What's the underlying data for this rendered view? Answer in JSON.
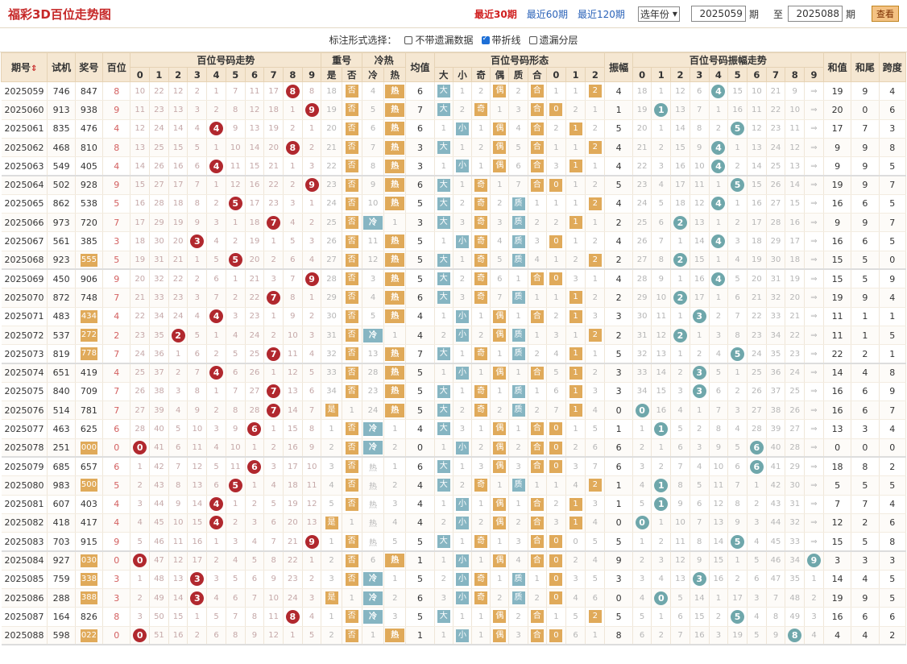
{
  "header": {
    "title": "福彩3D百位走势图",
    "nav": [
      "最近30期",
      "最近60期",
      "最近120期"
    ],
    "year_select": "选年份",
    "from": "2025059",
    "mid": "期",
    "to_label": "至",
    "to": "2025088",
    "end": "期",
    "btn": "查看"
  },
  "options": {
    "label": "标注形式选择：",
    "items": [
      {
        "label": "不带遗漏数据",
        "checked": false
      },
      {
        "label": "带折线",
        "checked": true
      },
      {
        "label": "遗漏分层",
        "checked": false
      }
    ]
  },
  "columns": {
    "qihao": "期号",
    "sort_icon": "⇕",
    "shiji": "试机",
    "jianghao": "奖号",
    "bai": "百位",
    "trend": "百位号码走势",
    "chong": "重号",
    "shi": "是",
    "fou": "否",
    "lengre": "冷热",
    "leng": "冷",
    "re": "热",
    "junzhi": "均值",
    "form": "百位号码形态",
    "da": "大",
    "xiao": "小",
    "ji": "奇",
    "ou": "偶",
    "zhi": "质",
    "he": "合",
    "zf": "振幅",
    "amp": "百位号码振幅走势",
    "hz": "和值",
    "hw": "和尾",
    "kd": "跨度",
    "digits": [
      "0",
      "1",
      "2",
      "3",
      "4",
      "5",
      "6",
      "7",
      "8",
      "9"
    ]
  },
  "rows": [
    [
      "2025059",
      "746",
      "847",
      "8",
      [
        10,
        22,
        12,
        2,
        1,
        7,
        11,
        17,
        "8",
        8
      ],
      "18",
      "否",
      "4",
      "热",
      "6",
      "大",
      "1",
      "2",
      "偶",
      "2",
      "合",
      "1",
      "1",
      "2",
      "4",
      [
        18,
        1,
        12,
        6,
        "4",
        15,
        10,
        21,
        9,
        "⇒"
      ],
      "19",
      "9",
      "4"
    ],
    [
      "2025060",
      "913",
      "938",
      "9",
      [
        11,
        23,
        13,
        3,
        2,
        8,
        12,
        18,
        1,
        "9"
      ],
      "19",
      "否",
      "5",
      "热",
      "7",
      "大",
      "2",
      "奇",
      "1",
      "3",
      "合",
      "0",
      "2",
      "1",
      "1",
      [
        19,
        "1",
        13,
        7,
        1,
        16,
        11,
        22,
        10,
        "⇒"
      ],
      "20",
      "0",
      "6"
    ],
    [
      "2025061",
      "835",
      "476",
      "4",
      [
        12,
        24,
        14,
        4,
        "4",
        9,
        13,
        19,
        2,
        1
      ],
      "20",
      "否",
      "6",
      "热",
      "6",
      "1",
      "小",
      "1",
      "偶",
      "4",
      "合",
      "2",
      "1",
      "2",
      "5",
      [
        20,
        1,
        14,
        8,
        2,
        "5",
        12,
        23,
        11,
        "⇒"
      ],
      "17",
      "7",
      "3"
    ],
    [
      "2025062",
      "468",
      "810",
      "8",
      [
        13,
        25,
        15,
        5,
        1,
        10,
        14,
        20,
        "8",
        2
      ],
      "21",
      "否",
      "7",
      "热",
      "3",
      "大",
      "1",
      "2",
      "偶",
      "5",
      "合",
      "1",
      "1",
      "2",
      "4",
      [
        21,
        2,
        15,
        9,
        "4",
        1,
        13,
        24,
        12,
        "⇒"
      ],
      "9",
      "9",
      "8"
    ],
    [
      "2025063",
      "549",
      "405",
      "4",
      [
        14,
        26,
        16,
        6,
        "4",
        11,
        15,
        21,
        1,
        3
      ],
      "22",
      "否",
      "8",
      "热",
      "3",
      "1",
      "小",
      "1",
      "偶",
      "6",
      "合",
      "3",
      "1",
      "1",
      "4",
      [
        22,
        3,
        16,
        10,
        "4",
        2,
        14,
        25,
        13,
        "⇒"
      ],
      "9",
      "9",
      "5"
    ],
    [
      "2025064",
      "502",
      "928",
      "9",
      [
        15,
        27,
        17,
        7,
        1,
        12,
        16,
        22,
        2,
        "9"
      ],
      "23",
      "否",
      "9",
      "热",
      "6",
      "大",
      "1",
      "奇",
      "1",
      "7",
      "合",
      "0",
      "1",
      "2",
      "5",
      [
        23,
        4,
        17,
        11,
        1,
        "5",
        15,
        26,
        14,
        "⇒"
      ],
      "19",
      "9",
      "7"
    ],
    [
      "2025065",
      "862",
      "538",
      "5",
      [
        16,
        28,
        18,
        8,
        2,
        "5",
        17,
        23,
        3,
        1
      ],
      "24",
      "否",
      "10",
      "热",
      "5",
      "大",
      "2",
      "奇",
      "2",
      "质",
      "1",
      "1",
      "1",
      "2",
      "4",
      [
        24,
        5,
        18,
        12,
        "4",
        1,
        16,
        27,
        15,
        "⇒"
      ],
      "16",
      "6",
      "5"
    ],
    [
      "2025066",
      "973",
      "720",
      "7",
      [
        17,
        29,
        19,
        9,
        3,
        1,
        18,
        "7",
        4,
        2
      ],
      "25",
      "否",
      "冷",
      "1",
      "3",
      "大",
      "3",
      "奇",
      "3",
      "质",
      "2",
      "2",
      "1",
      "1",
      "2",
      [
        25,
        6,
        "2",
        13,
        1,
        2,
        17,
        28,
        16,
        "⇒"
      ],
      "9",
      "9",
      "7"
    ],
    [
      "2025067",
      "561",
      "385",
      "3",
      [
        18,
        30,
        20,
        "3",
        4,
        2,
        19,
        1,
        5,
        3
      ],
      "26",
      "否",
      "11",
      "热",
      "5",
      "1",
      "小",
      "奇",
      "4",
      "质",
      "3",
      "0",
      "1",
      "2",
      "4",
      [
        26,
        7,
        1,
        14,
        "4",
        3,
        18,
        29,
        17,
        "⇒"
      ],
      "16",
      "6",
      "5"
    ],
    [
      "2025068",
      "923",
      "555",
      "5",
      [
        19,
        31,
        21,
        1,
        5,
        "5",
        20,
        2,
        6,
        4
      ],
      "27",
      "否",
      "12",
      "热",
      "5",
      "大",
      "1",
      "奇",
      "5",
      "质",
      "4",
      "1",
      "2",
      "2",
      "2",
      [
        27,
        8,
        "2",
        15,
        1,
        4,
        19,
        30,
        18,
        "⇒"
      ],
      "15",
      "5",
      "0"
    ],
    [
      "2025069",
      "450",
      "906",
      "9",
      [
        20,
        32,
        22,
        2,
        6,
        1,
        21,
        3,
        7,
        "9"
      ],
      "28",
      "否",
      "3",
      "热",
      "5",
      "大",
      "2",
      "奇",
      "6",
      "1",
      "合",
      "0",
      "3",
      "1",
      "4",
      [
        28,
        9,
        1,
        16,
        "4",
        5,
        20,
        31,
        19,
        "⇒"
      ],
      "15",
      "5",
      "9"
    ],
    [
      "2025070",
      "872",
      "748",
      "7",
      [
        21,
        33,
        23,
        3,
        7,
        2,
        22,
        "7",
        8,
        1
      ],
      "29",
      "否",
      "4",
      "热",
      "6",
      "大",
      "3",
      "奇",
      "7",
      "质",
      "1",
      "1",
      "1",
      "2",
      "2",
      [
        29,
        10,
        "2",
        17,
        1,
        6,
        21,
        32,
        20,
        "⇒"
      ],
      "19",
      "9",
      "4"
    ],
    [
      "2025071",
      "483",
      "434",
      "4",
      [
        22,
        34,
        24,
        4,
        "4",
        3,
        23,
        1,
        9,
        2
      ],
      "30",
      "否",
      "5",
      "热",
      "4",
      "1",
      "小",
      "1",
      "偶",
      "1",
      "合",
      "2",
      "1",
      "3",
      "3",
      [
        30,
        11,
        1,
        "3",
        2,
        7,
        22,
        33,
        21,
        "⇒"
      ],
      "11",
      "1",
      "1"
    ],
    [
      "2025072",
      "537",
      "272",
      "2",
      [
        23,
        35,
        "2",
        5,
        1,
        4,
        24,
        2,
        10,
        3
      ],
      "31",
      "否",
      "冷",
      "1",
      "4",
      "2",
      "小",
      "2",
      "偶",
      "质",
      "1",
      "3",
      "1",
      "2",
      "2",
      [
        31,
        12,
        "2",
        1,
        3,
        8,
        23,
        34,
        22,
        "⇒"
      ],
      "11",
      "1",
      "5"
    ],
    [
      "2025073",
      "819",
      "778",
      "7",
      [
        24,
        36,
        1,
        6,
        2,
        5,
        25,
        "7",
        11,
        4
      ],
      "32",
      "否",
      "13",
      "热",
      "7",
      "大",
      "1",
      "奇",
      "1",
      "质",
      "2",
      "4",
      "1",
      "1",
      "5",
      [
        32,
        13,
        1,
        2,
        4,
        "5",
        24,
        35,
        23,
        "⇒"
      ],
      "22",
      "2",
      "1"
    ],
    [
      "2025074",
      "651",
      "419",
      "4",
      [
        25,
        37,
        2,
        7,
        "4",
        6,
        26,
        1,
        12,
        5
      ],
      "33",
      "否",
      "28",
      "热",
      "5",
      "1",
      "小",
      "1",
      "偶",
      "1",
      "合",
      "5",
      "1",
      "2",
      "3",
      [
        33,
        14,
        2,
        "3",
        5,
        1,
        25,
        36,
        24,
        "⇒"
      ],
      "14",
      "4",
      "8"
    ],
    [
      "2025075",
      "840",
      "709",
      "7",
      [
        26,
        38,
        3,
        8,
        1,
        7,
        27,
        "7",
        13,
        6
      ],
      "34",
      "否",
      "23",
      "热",
      "5",
      "大",
      "1",
      "奇",
      "1",
      "质",
      "1",
      "6",
      "1",
      "3",
      "3",
      [
        34,
        15,
        3,
        "3",
        6,
        2,
        26,
        37,
        25,
        "⇒"
      ],
      "16",
      "6",
      "9"
    ],
    [
      "2025076",
      "514",
      "781",
      "7",
      [
        27,
        39,
        4,
        9,
        2,
        8,
        28,
        "7",
        14,
        7
      ],
      "是",
      "1",
      "24",
      "热",
      "5",
      "大",
      "2",
      "奇",
      "2",
      "质",
      "2",
      "7",
      "1",
      "4",
      "0",
      [
        " 0",
        16,
        4,
        1,
        7,
        3,
        27,
        38,
        26,
        "⇒"
      ],
      "16",
      "6",
      "7"
    ],
    [
      "2025077",
      "463",
      "625",
      "6",
      [
        28,
        40,
        5,
        10,
        3,
        9,
        "6",
        1,
        15,
        8
      ],
      "1",
      "否",
      "冷",
      "1",
      "4",
      "大",
      "3",
      "1",
      "偶",
      "1",
      "合",
      "0",
      "1",
      "5",
      "1",
      [
        1,
        "1",
        5,
        2,
        8,
        4,
        28,
        39,
        27,
        "⇒"
      ],
      "13",
      "3",
      "4"
    ],
    [
      "2025078",
      "251",
      "000",
      "0",
      [
        "0",
        41,
        6,
        11,
        4,
        10,
        1,
        2,
        16,
        9
      ],
      "2",
      "否",
      "冷",
      "2",
      "0",
      "1",
      "小",
      "2",
      "偶",
      "2",
      "合",
      "0",
      "2",
      "6",
      "6",
      [
        2,
        1,
        6,
        3,
        9,
        5,
        "6",
        40,
        28,
        "⇒"
      ],
      "0",
      "0",
      "0"
    ],
    [
      "2025079",
      "685",
      "657",
      "6",
      [
        1,
        42,
        7,
        12,
        5,
        11,
        "6",
        3,
        17,
        10
      ],
      "3",
      "否",
      "热",
      "1",
      "6",
      "大",
      "1",
      "3",
      "偶",
      "3",
      "合",
      "0",
      "3",
      "7",
      "6",
      [
        3,
        2,
        7,
        4,
        10,
        6,
        "6",
        41,
        29,
        "⇒"
      ],
      "18",
      "8",
      "2"
    ],
    [
      "2025080",
      "983",
      "500",
      "5",
      [
        2,
        43,
        8,
        13,
        6,
        "5",
        1,
        4,
        18,
        11
      ],
      "4",
      "否",
      "热",
      "2",
      "4",
      "大",
      "2",
      "奇",
      "1",
      "质",
      "1",
      "1",
      "4",
      "2",
      "1",
      [
        4,
        "1",
        8,
        5,
        11,
        7,
        1,
        42,
        30,
        "⇒"
      ],
      "5",
      "5",
      "5"
    ],
    [
      "2025081",
      "607",
      "403",
      "4",
      [
        3,
        44,
        9,
        14,
        "4",
        1,
        2,
        5,
        19,
        12
      ],
      "5",
      "否",
      "热",
      "3",
      "4",
      "1",
      "小",
      "1",
      "偶",
      "1",
      "合",
      "2",
      "1",
      "3",
      "1",
      [
        5,
        "1",
        9,
        6,
        12,
        8,
        2,
        43,
        31,
        "⇒"
      ],
      "7",
      "7",
      "4"
    ],
    [
      "2025082",
      "418",
      "417",
      "4",
      [
        4,
        45,
        10,
        15,
        "4",
        2,
        3,
        6,
        20,
        13
      ],
      "是",
      "1",
      "热",
      "4",
      "4",
      "2",
      "小",
      "2",
      "偶",
      "2",
      "合",
      "3",
      "1",
      "4",
      "0",
      [
        "0",
        1,
        10,
        7,
        13,
        9,
        3,
        44,
        32,
        "⇒"
      ],
      "12",
      "2",
      "6"
    ],
    [
      "2025083",
      "703",
      "915",
      "9",
      [
        5,
        46,
        11,
        16,
        1,
        3,
        4,
        7,
        21,
        "9"
      ],
      "1",
      "否",
      "热",
      "5",
      "5",
      "大",
      "1",
      "奇",
      "1",
      "3",
      "合",
      "4",
      "0",
      "5",
      "5",
      [
        1,
        2,
        11,
        8,
        14,
        "5",
        4,
        45,
        33,
        "⇒"
      ],
      "15",
      "5",
      "8"
    ],
    [
      "2025084",
      "927",
      "030",
      "0",
      [
        "0",
        47,
        12,
        17,
        2,
        4,
        5,
        8,
        22,
        1
      ],
      "2",
      "否",
      "6",
      "热",
      "1",
      "1",
      "小",
      "1",
      "偶",
      "4",
      "合",
      "0",
      "2",
      "4",
      "9",
      [
        2,
        3,
        12,
        9,
        15,
        1,
        5,
        46,
        34,
        "9"
      ],
      "3",
      "3",
      "3"
    ],
    [
      "2025085",
      "759",
      "338",
      "3",
      [
        1,
        48,
        13,
        "3",
        3,
        5,
        6,
        9,
        23,
        2
      ],
      "3",
      "否",
      "冷",
      "1",
      "5",
      "2",
      "小",
      "奇",
      "1",
      "质",
      "1",
      "0",
      "3",
      "5",
      "3",
      [
        3,
        4,
        13,
        "3",
        16,
        2,
        6,
        47,
        35,
        1
      ],
      "14",
      "4",
      "5"
    ],
    [
      "2025086",
      "288",
      "388",
      "3",
      [
        2,
        49,
        14,
        "3",
        4,
        6,
        7,
        10,
        24,
        3
      ],
      "是",
      "1",
      "冷",
      "2",
      "6",
      "3",
      "小",
      "奇",
      "2",
      "质",
      "2",
      "0",
      "4",
      "6",
      "0",
      [
        4,
        "0",
        5,
        14,
        1,
        17,
        3,
        7,
        48,
        2
      ],
      "19",
      "9",
      "5"
    ],
    [
      "2025087",
      "164",
      "826",
      "8",
      [
        3,
        50,
        15,
        1,
        5,
        7,
        8,
        11,
        "8",
        4
      ],
      "1",
      "否",
      "冷",
      "3",
      "5",
      "大",
      "1",
      "1",
      "偶",
      "2",
      "合",
      "1",
      "5",
      "7",
      "5",
      [
        5,
        1,
        6,
        15,
        2,
        "5",
        4,
        8,
        49,
        3
      ],
      "16",
      "6",
      "6"
    ],
    [
      "2025088",
      "598",
      "022",
      "0",
      [
        "0",
        51,
        16,
        2,
        6,
        8,
        9,
        12,
        1,
        5
      ],
      "2",
      "否",
      "1",
      "热",
      "1",
      "1",
      "小",
      "1",
      "偶",
      "3",
      "合",
      "0",
      "6",
      "1",
      "8",
      [
        6,
        2,
        7,
        16,
        3,
        19,
        5,
        9,
        "8",
        4
      ],
      "4",
      "4",
      "2"
    ]
  ]
}
